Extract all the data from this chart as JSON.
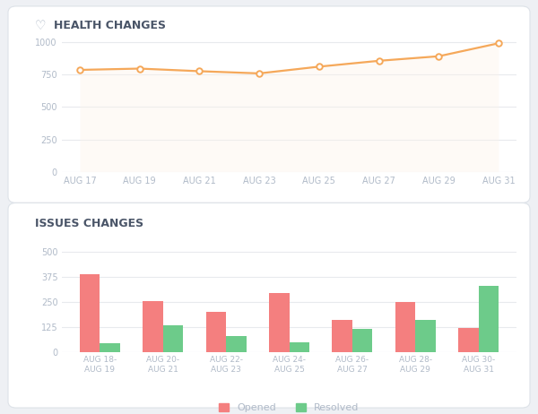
{
  "health_title": "HEALTH CHANGES",
  "health_x_labels": [
    "AUG 17",
    "AUG 19",
    "AUG 21",
    "AUG 23",
    "AUG 25",
    "AUG 27",
    "AUG 29",
    "AUG 31"
  ],
  "health_y_values": [
    785,
    795,
    775,
    758,
    810,
    855,
    890,
    990
  ],
  "health_line_color": "#f5a85a",
  "health_fill_color": "#fef3e8",
  "health_ylim": [
    0,
    1100
  ],
  "health_yticks": [
    0,
    250,
    500,
    750,
    1000
  ],
  "issues_title": "ISSUES CHANGES",
  "issues_x_labels": [
    "AUG 18-\nAUG 19",
    "AUG 20-\nAUG 21",
    "AUG 22-\nAUG 23",
    "AUG 24-\nAUG 25",
    "AUG 26-\nAUG 27",
    "AUG 28-\nAUG 29",
    "AUG 30-\nAUG 31"
  ],
  "issues_opened": [
    390,
    255,
    200,
    295,
    160,
    250,
    120
  ],
  "issues_resolved": [
    45,
    135,
    80,
    50,
    115,
    160,
    330
  ],
  "opened_color": "#f47f7f",
  "resolved_color": "#6dcb8a",
  "issues_ylim": [
    0,
    560
  ],
  "issues_yticks": [
    0,
    125,
    250,
    375,
    500
  ],
  "bg_color": "#eef0f4",
  "card_color": "#ffffff",
  "title_color": "#4a5568",
  "tick_color": "#b0bac8",
  "grid_color": "#e8eaed",
  "card_edge_color": "#dde2e8"
}
